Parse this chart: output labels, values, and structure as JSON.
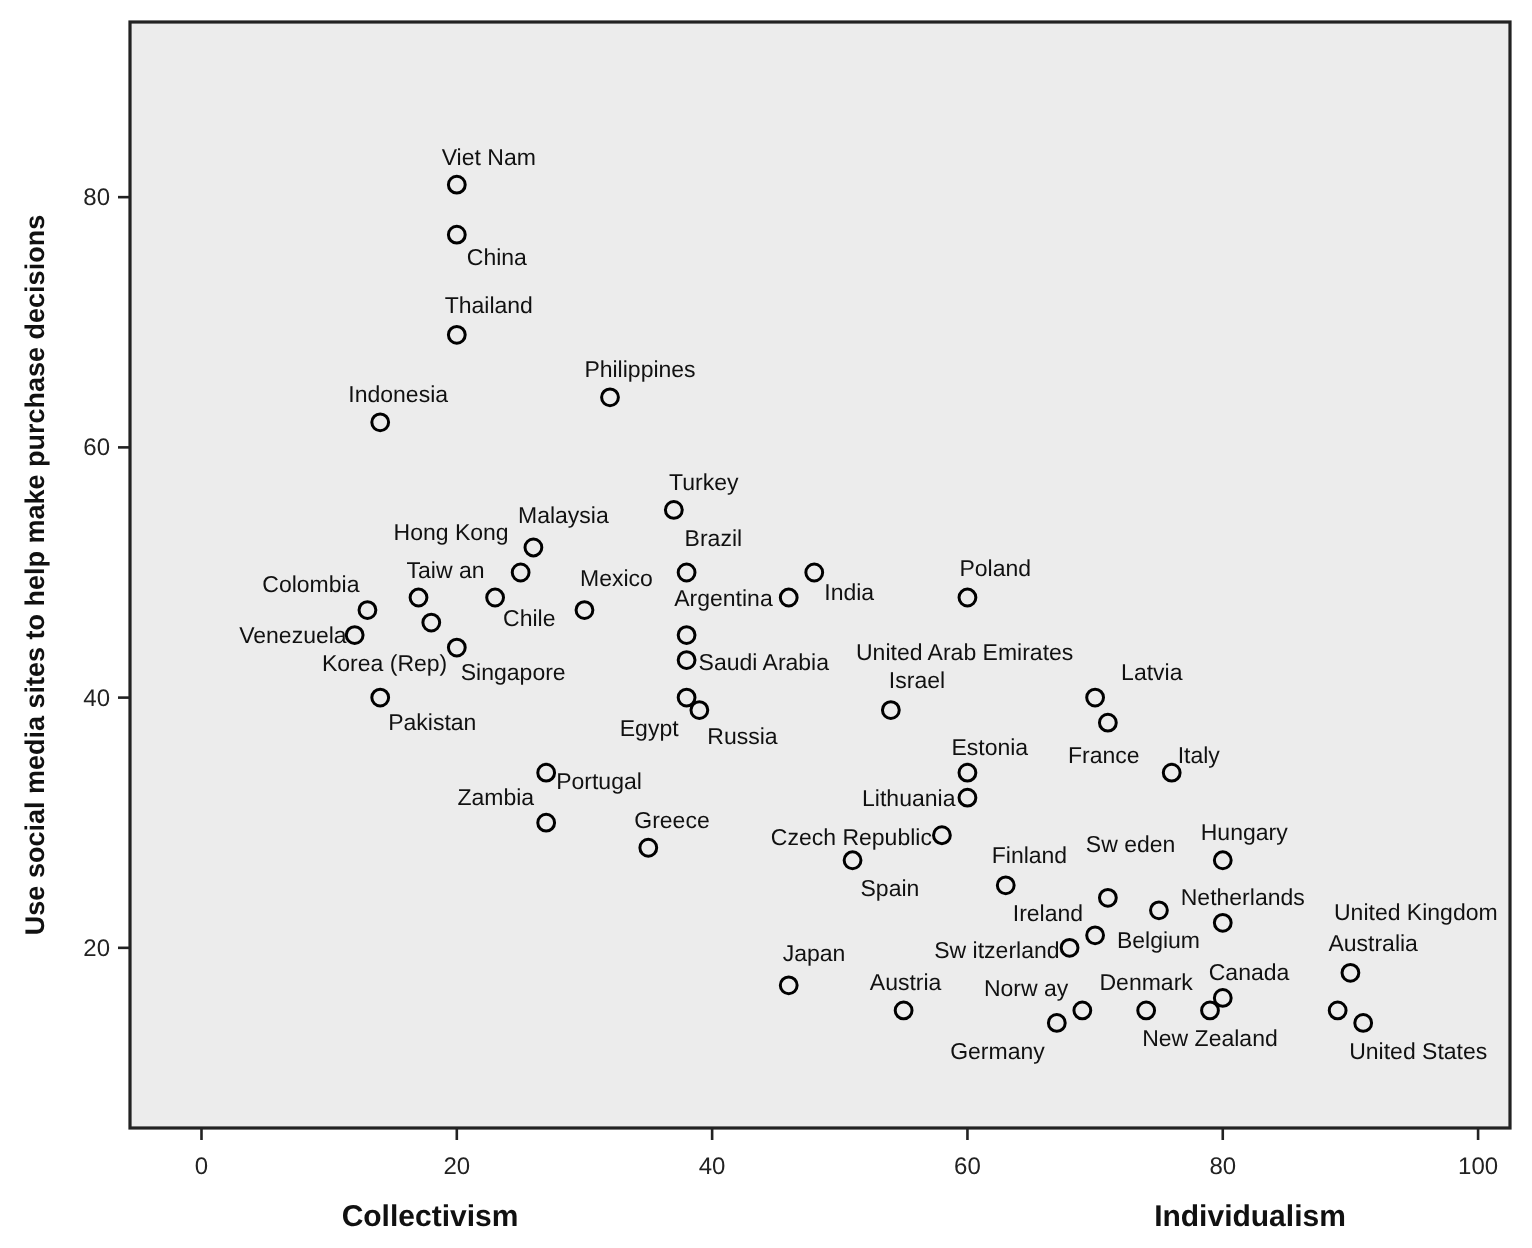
{
  "chart_data": {
    "type": "scatter",
    "ylabel": "Use social media sites to help make purchase decisions",
    "xlabel": "Collectivism",
    "xlim": [
      -5.6,
      102.5
    ],
    "ylim": [
      5.6,
      94
    ],
    "xticks": [
      0,
      20,
      40,
      60,
      80,
      100
    ],
    "yticks": [
      20,
      40,
      60,
      80
    ],
    "grid": false,
    "marker": "circle",
    "series": [
      {
        "color": "#000000",
        "x": [
          20,
          20,
          20,
          14,
          32,
          37,
          26,
          25,
          17,
          23,
          18,
          13,
          12,
          20,
          14,
          30,
          38,
          46,
          48,
          38,
          38,
          38,
          39,
          27,
          27,
          35,
          46,
          54,
          60,
          70,
          71,
          76,
          60,
          60,
          58,
          51,
          63,
          71,
          80,
          80,
          70,
          75,
          68,
          80,
          79,
          74,
          69,
          67,
          55,
          89,
          90,
          91
        ],
        "values": [
          81,
          77,
          69,
          62,
          64,
          55,
          52,
          50,
          48,
          48,
          46,
          47,
          45,
          44,
          40,
          47,
          50,
          48,
          50,
          45,
          43,
          40,
          39,
          34,
          30,
          28,
          17,
          39,
          48,
          40,
          38,
          34,
          34,
          32,
          29,
          27,
          25,
          24,
          27,
          22,
          21,
          23,
          20,
          16,
          15,
          15,
          15,
          14,
          15,
          15,
          18,
          14
        ]
      }
    ],
    "annotations": [
      {
        "text": "Viet Nam",
        "x": 20,
        "y": 81
      },
      {
        "text": "China",
        "x": 20,
        "y": 77
      },
      {
        "text": "Thailand",
        "x": 20,
        "y": 69
      },
      {
        "text": "Indonesia",
        "x": 14,
        "y": 62
      },
      {
        "text": "Philippines",
        "x": 32,
        "y": 64
      },
      {
        "text": "Turkey",
        "x": 37,
        "y": 55
      },
      {
        "text": "Malaysia",
        "x": 26,
        "y": 52
      },
      {
        "text": "Hong Kong",
        "x": 25,
        "y": 50
      },
      {
        "text": "Taiw an",
        "x": 17,
        "y": 48
      },
      {
        "text": "Chile",
        "x": 23,
        "y": 48
      },
      {
        "text": "Korea (Rep)",
        "x": 18,
        "y": 46
      },
      {
        "text": "Colombia",
        "x": 13,
        "y": 47
      },
      {
        "text": "Venezuela",
        "x": 12,
        "y": 45
      },
      {
        "text": "Singapore",
        "x": 20,
        "y": 44
      },
      {
        "text": "Pakistan",
        "x": 14,
        "y": 40
      },
      {
        "text": "Mexico",
        "x": 30,
        "y": 47
      },
      {
        "text": "Brazil",
        "x": 38,
        "y": 50
      },
      {
        "text": "Argentina",
        "x": 46,
        "y": 48
      },
      {
        "text": "India",
        "x": 48,
        "y": 50
      },
      {
        "text": "Saudi Arabia",
        "x": 38,
        "y": 43
      },
      {
        "text": "Egypt",
        "x": 38,
        "y": 40
      },
      {
        "text": "Russia",
        "x": 39,
        "y": 39
      },
      {
        "text": "Portugal",
        "x": 27,
        "y": 34
      },
      {
        "text": "Zambia",
        "x": 27,
        "y": 30
      },
      {
        "text": "Greece",
        "x": 35,
        "y": 28
      },
      {
        "text": "Japan",
        "x": 46,
        "y": 17
      },
      {
        "text": "Israel",
        "x": 54,
        "y": 39
      },
      {
        "text": "Poland",
        "x": 60,
        "y": 48
      },
      {
        "text": "Latvia",
        "x": 70,
        "y": 40
      },
      {
        "text": "France",
        "x": 71,
        "y": 38
      },
      {
        "text": "Italy",
        "x": 76,
        "y": 34
      },
      {
        "text": "Estonia",
        "x": 60,
        "y": 34
      },
      {
        "text": "Lithuania",
        "x": 60,
        "y": 32
      },
      {
        "text": "Czech Republic",
        "x": 58,
        "y": 29
      },
      {
        "text": "Spain",
        "x": 51,
        "y": 27
      },
      {
        "text": "Finland",
        "x": 63,
        "y": 25
      },
      {
        "text": "Sw eden",
        "x": 71,
        "y": 24
      },
      {
        "text": "Hungary",
        "x": 80,
        "y": 27
      },
      {
        "text": "Netherlands",
        "x": 80,
        "y": 22
      },
      {
        "text": "Ireland",
        "x": 70,
        "y": 21
      },
      {
        "text": "Belgium",
        "x": 75,
        "y": 23
      },
      {
        "text": "Sw itzerland",
        "x": 68,
        "y": 20
      },
      {
        "text": "Canada",
        "x": 80,
        "y": 16
      },
      {
        "text": "New Zealand",
        "x": 79,
        "y": 15
      },
      {
        "text": "Denmark",
        "x": 74,
        "y": 15
      },
      {
        "text": "Norw ay",
        "x": 69,
        "y": 15
      },
      {
        "text": "Germany",
        "x": 67,
        "y": 14
      },
      {
        "text": "Austria",
        "x": 55,
        "y": 15
      },
      {
        "text": "Australia",
        "x": 90,
        "y": 18
      },
      {
        "text": "United States",
        "x": 91,
        "y": 14
      },
      "United Arab Emirates",
      "United Kingdom",
      "Individualism"
    ]
  }
}
